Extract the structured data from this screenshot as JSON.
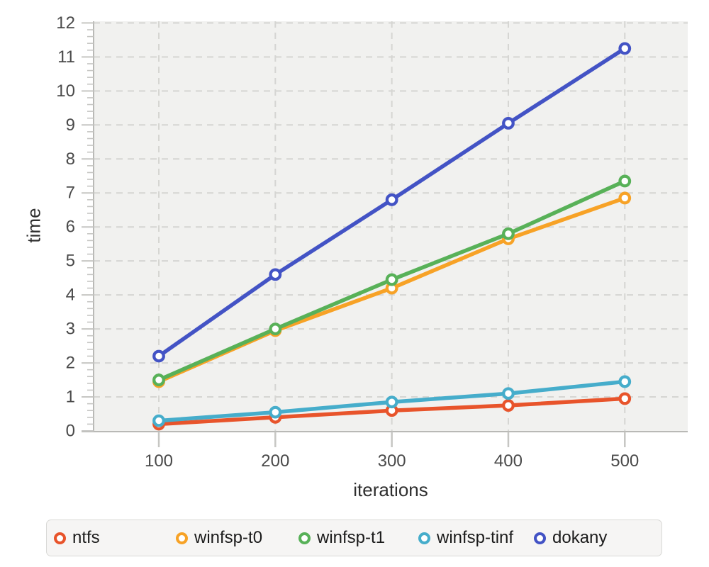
{
  "chart_data": {
    "type": "line",
    "x": [
      100,
      200,
      300,
      400,
      500
    ],
    "xlabel": "iterations",
    "ylabel": "time",
    "xlim": [
      44,
      554
    ],
    "ylim": [
      0,
      12.05
    ],
    "xticks": [
      100,
      200,
      300,
      400,
      500
    ],
    "yticks": [
      0,
      1,
      2,
      3,
      4,
      5,
      6,
      7,
      8,
      9,
      10,
      11,
      12
    ],
    "y_minor_tick_step": 0.2,
    "grid": true,
    "grid_style": "dashed",
    "legend_position": "bottom",
    "series": [
      {
        "name": "ntfs",
        "color": "#E8542B",
        "values": [
          0.2,
          0.4,
          0.6,
          0.75,
          0.95
        ]
      },
      {
        "name": "winfsp-t0",
        "color": "#F7A226",
        "values": [
          1.45,
          2.95,
          4.2,
          5.65,
          6.85
        ]
      },
      {
        "name": "winfsp-t1",
        "color": "#58B158",
        "values": [
          1.5,
          3.0,
          4.45,
          5.8,
          7.35
        ]
      },
      {
        "name": "winfsp-tinf",
        "color": "#46ADCB",
        "values": [
          0.3,
          0.55,
          0.85,
          1.1,
          1.45
        ]
      },
      {
        "name": "dokany",
        "color": "#4353C5",
        "values": [
          2.2,
          4.6,
          6.8,
          9.05,
          11.25
        ]
      }
    ]
  },
  "colors": {
    "plot_background": "#f1f1ef",
    "gridline": "#d5d5d2",
    "axis_line": "#b9b9b6",
    "tick": "#c6c6c3",
    "tick_label": "#4a4a4a",
    "axis_label": "#2f2f2f",
    "legend_background": "#f6f5f4",
    "legend_border": "#d9d9d6",
    "legend_text": "#1b1b1b",
    "marker_fill": "#ffffff"
  }
}
